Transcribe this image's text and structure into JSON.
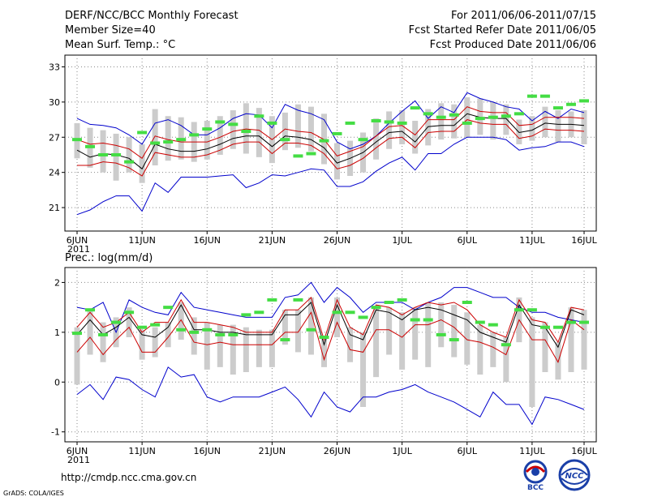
{
  "header": {
    "title": "DERF/NCC/BCC Monthly Forecast",
    "member_size": "Member Size=40",
    "variable": "Mean Surf. Temp.: °C",
    "forecast_period": "For 2011/06/06-2011/07/15",
    "started_date": "Fcst Started Refer Date 2011/06/05",
    "produced_date": "Fcst Produced Date 2011/06/06"
  },
  "footer": {
    "url": "http://cmdp.ncc.cma.gov.cn",
    "grads": "GrADS: COLA/IGES",
    "logo_bcc": "BCC",
    "logo_ncc": "NCC"
  },
  "colors": {
    "mean": "#000000",
    "spread": "#cc0000",
    "extreme": "#0000cc",
    "bar": "#cccccc",
    "obs": "#44dd44"
  },
  "chart_data": [
    {
      "type": "line",
      "title": "Mean Surf. Temp.: °C",
      "x_tick_labels": [
        "6JUN",
        "11JUN",
        "16JUN",
        "21JUN",
        "26JUN",
        "1JUL",
        "6JUL",
        "11JUL",
        "16JUL"
      ],
      "x_year_label": "2011",
      "x_range": [
        0,
        39
      ],
      "ylim": [
        19,
        34
      ],
      "y_ticks": [
        21,
        24,
        27,
        30,
        33
      ],
      "grid": true,
      "series": [
        {
          "name": "ensemble-max",
          "values": [
            28.6,
            28.1,
            28.0,
            27.8,
            27.2,
            26.4,
            28.2,
            28.5,
            28.0,
            27.2,
            27.2,
            27.8,
            28.6,
            29.0,
            28.9,
            27.8,
            29.8,
            29.3,
            29.0,
            28.5,
            26.6,
            26.0,
            26.4,
            27.1,
            28.2,
            29.2,
            30.1,
            28.6,
            29.6,
            29.1,
            30.8,
            30.3,
            30.0,
            29.6,
            29.4,
            28.4,
            29.2,
            28.6,
            29.4,
            29.1
          ]
        },
        {
          "name": "upper-spread",
          "values": [
            26.8,
            26.4,
            26.5,
            26.3,
            26.0,
            25.2,
            27.1,
            26.8,
            26.6,
            26.6,
            26.6,
            27.0,
            27.5,
            27.7,
            27.6,
            26.8,
            27.7,
            27.5,
            27.4,
            26.8,
            25.4,
            25.8,
            26.2,
            27.1,
            27.9,
            28.0,
            27.2,
            28.5,
            28.5,
            28.5,
            29.6,
            29.2,
            29.1,
            29.1,
            28.0,
            28.1,
            28.7,
            28.7,
            28.7,
            28.6
          ]
        },
        {
          "name": "ensemble-mean",
          "values": [
            25.9,
            25.3,
            25.6,
            25.5,
            25.2,
            24.3,
            26.4,
            26.0,
            25.8,
            25.8,
            26.0,
            26.4,
            26.9,
            27.1,
            27.1,
            26.2,
            27.1,
            27.0,
            26.8,
            26.1,
            24.8,
            25.2,
            25.7,
            26.6,
            27.4,
            27.5,
            26.6,
            27.9,
            28.0,
            28.0,
            29.0,
            28.7,
            28.6,
            28.6,
            27.4,
            27.6,
            28.2,
            28.1,
            28.1,
            28.0
          ]
        },
        {
          "name": "lower-spread",
          "values": [
            24.6,
            24.6,
            24.9,
            24.8,
            24.4,
            23.7,
            25.7,
            25.5,
            25.3,
            25.3,
            25.5,
            25.9,
            26.4,
            26.6,
            26.6,
            25.6,
            26.5,
            26.5,
            26.3,
            25.6,
            24.3,
            24.6,
            25.2,
            26.1,
            26.9,
            27.0,
            26.1,
            27.4,
            27.5,
            27.5,
            28.5,
            28.2,
            28.1,
            28.1,
            26.9,
            27.1,
            27.7,
            27.6,
            27.6,
            27.5
          ]
        },
        {
          "name": "ensemble-min",
          "values": [
            20.4,
            20.8,
            21.5,
            22.0,
            22.0,
            20.7,
            23.1,
            22.3,
            23.6,
            23.6,
            23.6,
            23.7,
            23.8,
            22.7,
            23.1,
            23.8,
            23.7,
            24.0,
            24.3,
            24.2,
            22.8,
            22.8,
            23.2,
            24.1,
            24.8,
            25.3,
            24.2,
            25.6,
            25.6,
            26.4,
            27.0,
            27.0,
            27.0,
            26.8,
            25.9,
            26.1,
            26.2,
            26.6,
            26.6,
            26.2
          ]
        }
      ],
      "range_bars": {
        "low": [
          25.2,
          24.4,
          24.0,
          23.3,
          24.0,
          23.1,
          24.6,
          25.0,
          25.1,
          24.9,
          25.1,
          25.5,
          26.0,
          25.6,
          25.3,
          24.8,
          25.9,
          26.1,
          25.8,
          24.7,
          23.4,
          23.7,
          24.0,
          25.1,
          26.0,
          26.4,
          25.6,
          26.3,
          26.8,
          26.9,
          27.0,
          27.2,
          26.8,
          27.2,
          26.4,
          26.7,
          27.0,
          26.6,
          27.0,
          26.4
        ],
        "high": [
          28.2,
          27.8,
          27.6,
          27.3,
          27.0,
          26.4,
          29.4,
          28.8,
          28.7,
          28.3,
          28.4,
          28.8,
          29.3,
          29.9,
          29.5,
          28.8,
          29.1,
          29.8,
          29.6,
          29.0,
          26.5,
          26.7,
          27.4,
          28.6,
          29.2,
          29.3,
          28.4,
          29.4,
          29.9,
          29.8,
          30.4,
          30.3,
          30.0,
          29.8,
          28.5,
          28.8,
          29.6,
          29.3,
          29.2,
          29.3
        ]
      },
      "observed": [
        26.8,
        26.2,
        25.5,
        25.5,
        24.9,
        27.4,
        26.5,
        26.6,
        26.8,
        27.2,
        27.7,
        28.3,
        28.1,
        27.5,
        28.8,
        28.2,
        26.8,
        25.4,
        25.6,
        26.7,
        27.3,
        28.2,
        26.8,
        28.4,
        28.3,
        28.2,
        29.5,
        29.0,
        28.7,
        28.9,
        28.2,
        28.6,
        28.7,
        28.8,
        29.0,
        30.5,
        30.5,
        29.5,
        29.8,
        30.1
      ]
    },
    {
      "type": "line",
      "title": "Prec.: log(mm/d)",
      "x_tick_labels": [
        "6JUN",
        "11JUN",
        "16JUN",
        "21JUN",
        "26JUN",
        "1JUL",
        "6JUL",
        "11JUL",
        "16JUL"
      ],
      "x_year_label": "2011",
      "x_range": [
        0,
        39
      ],
      "ylim": [
        -1.2,
        2.3
      ],
      "y_ticks": [
        -1,
        0,
        1,
        2
      ],
      "grid": true,
      "series": [
        {
          "name": "ensemble-max",
          "values": [
            1.5,
            1.45,
            1.6,
            1.0,
            1.65,
            1.5,
            1.4,
            1.35,
            1.8,
            1.5,
            1.45,
            1.4,
            1.35,
            1.3,
            1.3,
            1.3,
            1.7,
            1.75,
            2.0,
            1.6,
            1.9,
            1.7,
            1.4,
            1.6,
            1.6,
            1.6,
            1.45,
            1.6,
            1.7,
            1.9,
            1.9,
            1.8,
            1.7,
            1.7,
            1.5,
            1.4,
            1.4,
            1.3,
            1.25,
            1.2
          ]
        },
        {
          "name": "upper-spread",
          "values": [
            1.1,
            1.4,
            1.1,
            1.2,
            1.4,
            1.0,
            1.2,
            1.2,
            1.65,
            1.2,
            1.2,
            1.15,
            1.1,
            1.0,
            1.0,
            1.0,
            1.45,
            1.45,
            1.7,
            0.85,
            1.65,
            1.1,
            0.95,
            1.55,
            1.5,
            1.35,
            1.5,
            1.6,
            1.55,
            1.6,
            1.45,
            1.15,
            1.0,
            0.9,
            1.65,
            1.25,
            1.2,
            0.8,
            1.5,
            1.45
          ]
        },
        {
          "name": "ensemble-mean",
          "values": [
            0.95,
            1.25,
            0.95,
            1.1,
            1.3,
            0.95,
            0.9,
            1.1,
            1.55,
            1.05,
            1.05,
            1.0,
            1.0,
            0.95,
            0.95,
            0.95,
            1.35,
            1.35,
            1.6,
            0.75,
            1.55,
            0.95,
            0.85,
            1.45,
            1.4,
            1.25,
            1.45,
            1.5,
            1.45,
            1.35,
            1.25,
            1.0,
            0.9,
            0.8,
            1.55,
            1.15,
            1.1,
            0.7,
            1.45,
            1.35
          ]
        },
        {
          "name": "lower-spread",
          "values": [
            0.6,
            0.9,
            0.55,
            0.85,
            1.1,
            0.6,
            0.6,
            0.9,
            1.25,
            0.8,
            0.75,
            0.8,
            0.75,
            0.75,
            0.75,
            0.75,
            1.0,
            1.0,
            1.4,
            0.45,
            1.2,
            0.65,
            0.6,
            1.05,
            1.05,
            0.9,
            1.15,
            1.15,
            1.25,
            1.1,
            0.85,
            0.8,
            0.7,
            0.55,
            1.25,
            0.85,
            0.85,
            0.4,
            1.25,
            1.05
          ]
        },
        {
          "name": "ensemble-min",
          "values": [
            -0.25,
            -0.05,
            -0.35,
            0.1,
            0.05,
            -0.15,
            -0.3,
            0.3,
            0.1,
            0.15,
            -0.3,
            -0.4,
            -0.3,
            -0.3,
            -0.3,
            -0.2,
            -0.1,
            -0.35,
            -0.7,
            -0.2,
            -0.5,
            -0.6,
            -0.3,
            -0.3,
            -0.2,
            -0.15,
            -0.05,
            -0.2,
            -0.3,
            -0.4,
            -0.55,
            -0.7,
            -0.2,
            -0.45,
            -0.45,
            -0.85,
            -0.3,
            -0.35,
            -0.45,
            -0.55
          ]
        }
      ],
      "range_bars": {
        "low": [
          -0.05,
          0.55,
          0.4,
          0.7,
          0.9,
          0.45,
          0.5,
          0.7,
          0.85,
          0.55,
          0.25,
          0.3,
          0.15,
          0.2,
          0.3,
          0.3,
          0.75,
          0.6,
          0.55,
          0.3,
          0.9,
          0.4,
          -0.5,
          0.1,
          0.55,
          0.25,
          0.45,
          0.3,
          0.7,
          0.5,
          0.35,
          0.15,
          0.3,
          0.0,
          0.8,
          -0.5,
          0.2,
          0.05,
          0.2,
          0.25
        ]
      },
      "range_bars_high": [
        1.1,
        1.45,
        1.2,
        1.3,
        1.5,
        1.05,
        1.1,
        1.2,
        1.6,
        1.3,
        1.2,
        1.15,
        1.15,
        1.1,
        1.05,
        1.05,
        1.45,
        1.45,
        1.7,
        0.9,
        1.7,
        1.1,
        1.0,
        1.5,
        1.5,
        1.4,
        1.5,
        1.6,
        1.6,
        1.55,
        1.4,
        1.15,
        1.0,
        0.9,
        1.7,
        1.3,
        1.2,
        0.8,
        1.5,
        1.45
      ],
      "observed": [
        0.98,
        1.45,
        0.95,
        1.2,
        1.4,
        1.1,
        1.15,
        1.5,
        1.05,
        1.0,
        1.05,
        0.95,
        0.95,
        1.35,
        1.4,
        1.65,
        0.85,
        1.65,
        1.05,
        0.9,
        1.4,
        1.4,
        1.3,
        1.5,
        1.6,
        1.65,
        1.25,
        1.25,
        0.95,
        0.85,
        1.6,
        1.2,
        1.15,
        0.75,
        1.45,
        1.45,
        1.1,
        1.1,
        1.2,
        1.2
      ]
    }
  ]
}
